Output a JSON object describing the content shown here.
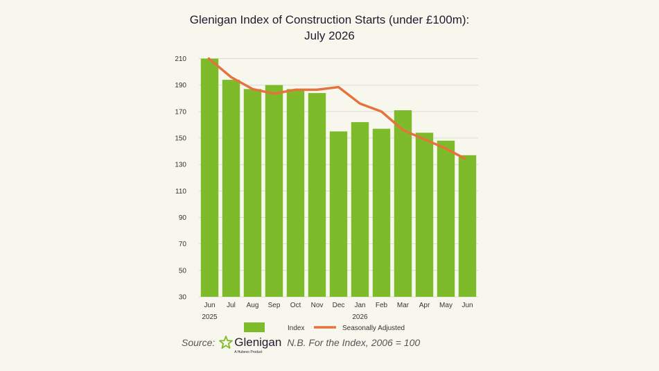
{
  "chart_data": {
    "type": "bar",
    "title_lines": [
      "Glenigan Index of Construction Starts (under £100m):",
      "July 2026"
    ],
    "categories": [
      "Jun",
      "Jul",
      "Aug",
      "Sep",
      "Oct",
      "Nov",
      "Dec",
      "Jan",
      "Feb",
      "Mar",
      "Apr",
      "May",
      "Jun"
    ],
    "year_labels": [
      "2025",
      "",
      "",
      "",
      "",
      "",
      "",
      "2026",
      "",
      "",
      "",
      "",
      ""
    ],
    "series": [
      {
        "name": "Index",
        "type": "bar",
        "color": "#7dbb2a",
        "values": [
          210,
          194,
          187,
          190,
          187,
          184,
          155,
          162,
          157,
          171,
          154,
          148,
          137
        ]
      },
      {
        "name": "Seasonally Adjusted",
        "type": "line",
        "color": "#e5733d",
        "values": [
          210,
          196,
          187,
          183.5,
          186.5,
          186.5,
          188.5,
          176,
          170,
          156,
          149,
          142,
          134.5
        ]
      }
    ],
    "yticks": [
      30,
      50,
      70,
      90,
      110,
      130,
      150,
      170,
      190,
      210
    ],
    "ylim": [
      30,
      215
    ],
    "grid": true,
    "legend_position": "bottom"
  },
  "footer": {
    "source_label": "Source:",
    "brand_name": "Glenigan",
    "brand_tagline": "A Hubexo Product",
    "note": "N.B. For the Index, 2006 = 100"
  },
  "colors": {
    "background": "#f8f7ee",
    "bar": "#7dbb2a",
    "line": "#e5733d",
    "grid": "#dcdcd4",
    "brand_star": "#7dbb2a"
  }
}
